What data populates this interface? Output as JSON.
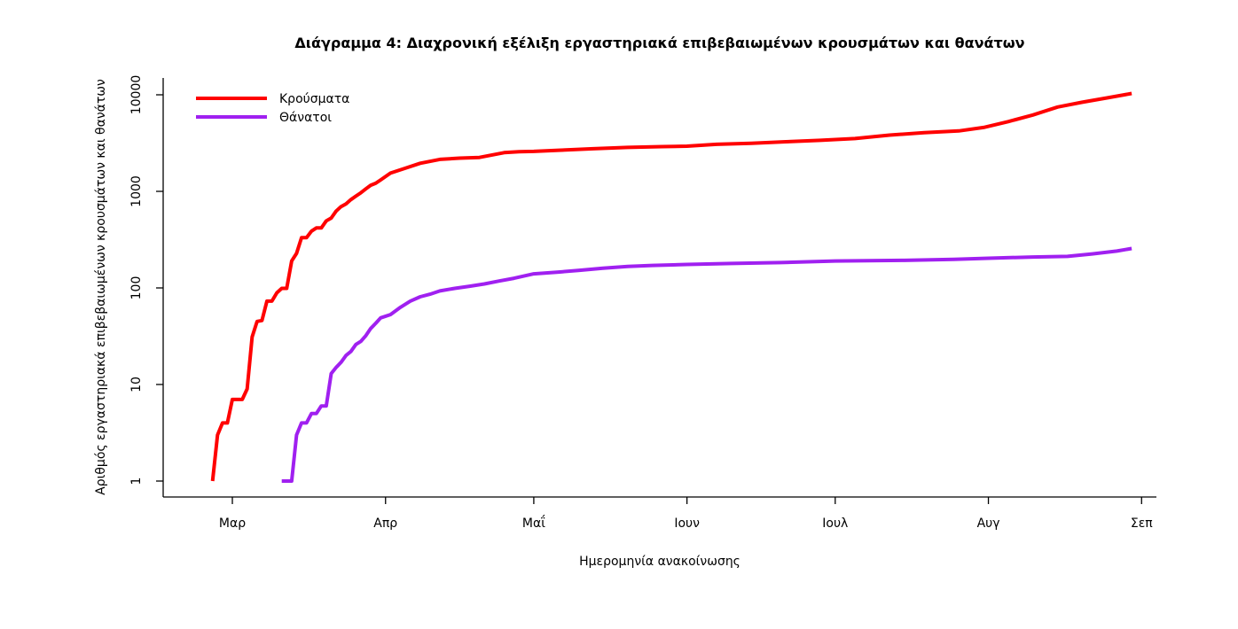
{
  "chart_data": {
    "type": "line",
    "title": "Διάγραμμα 4: Διαχρονική εξέλιξη εργαστηριακά επιβεβαιωμένων κρουσμάτων και θανάτων",
    "xlabel": "Ημερομηνία ανακοίνωσης",
    "ylabel": "Αριθμός εργαστηριακά επιβεβαιωμένων κρουσμάτων και θανάτων",
    "y_scale": "log",
    "ylim": [
      1,
      10000
    ],
    "y_ticks": [
      1,
      10,
      100,
      1000,
      10000
    ],
    "y_tick_labels": [
      "1",
      "10",
      "100",
      "1000",
      "10000"
    ],
    "x_tick_labels": [
      "Μαρ",
      "Απρ",
      "Μαΐ",
      "Ιουν",
      "Ιουλ",
      "Αυγ",
      "Σεπ"
    ],
    "x_tick_dates": [
      "2020-03-01",
      "2020-04-01",
      "2020-05-01",
      "2020-06-01",
      "2020-07-01",
      "2020-08-01",
      "2020-09-01"
    ],
    "xlim": [
      "2020-02-16",
      "2020-09-04"
    ],
    "legend_position": "top-left",
    "series": [
      {
        "name": "Κρούσματα",
        "color": "#ff0000",
        "x": [
          "2020-02-26",
          "2020-02-27",
          "2020-02-28",
          "2020-02-29",
          "2020-03-01",
          "2020-03-02",
          "2020-03-03",
          "2020-03-04",
          "2020-03-05",
          "2020-03-06",
          "2020-03-07",
          "2020-03-08",
          "2020-03-09",
          "2020-03-10",
          "2020-03-11",
          "2020-03-12",
          "2020-03-13",
          "2020-03-14",
          "2020-03-15",
          "2020-03-16",
          "2020-03-17",
          "2020-03-18",
          "2020-03-19",
          "2020-03-20",
          "2020-03-21",
          "2020-03-22",
          "2020-03-23",
          "2020-03-24",
          "2020-03-25",
          "2020-03-26",
          "2020-03-27",
          "2020-03-28",
          "2020-03-29",
          "2020-03-30",
          "2020-03-31",
          "2020-04-02",
          "2020-04-05",
          "2020-04-08",
          "2020-04-12",
          "2020-04-16",
          "2020-04-20",
          "2020-04-25",
          "2020-04-28",
          "2020-05-01",
          "2020-05-06",
          "2020-05-13",
          "2020-05-20",
          "2020-05-27",
          "2020-06-01",
          "2020-06-07",
          "2020-06-14",
          "2020-06-21",
          "2020-06-28",
          "2020-07-05",
          "2020-07-12",
          "2020-07-19",
          "2020-07-26",
          "2020-07-31",
          "2020-08-05",
          "2020-08-10",
          "2020-08-15",
          "2020-08-20",
          "2020-08-25",
          "2020-08-30"
        ],
        "values": [
          1,
          3,
          4,
          4,
          7,
          7,
          7,
          9,
          31,
          45,
          46,
          73,
          73,
          89,
          99,
          99,
          190,
          228,
          331,
          331,
          387,
          418,
          418,
          495,
          530,
          624,
          695,
          743,
          821,
          892,
          966,
          1061,
          1156,
          1212,
          1314,
          1544,
          1735,
          1955,
          2145,
          2207,
          2245,
          2517,
          2576,
          2591,
          2663,
          2760,
          2850,
          2903,
          2937,
          3068,
          3148,
          3266,
          3376,
          3519,
          3826,
          4048,
          4227,
          4587,
          5270,
          6177,
          7472,
          8381,
          9280,
          10317
        ]
      },
      {
        "name": "Θάνατοι",
        "color": "#a020f0",
        "x": [
          "2020-03-11",
          "2020-03-12",
          "2020-03-13",
          "2020-03-14",
          "2020-03-15",
          "2020-03-16",
          "2020-03-17",
          "2020-03-18",
          "2020-03-19",
          "2020-03-20",
          "2020-03-21",
          "2020-03-22",
          "2020-03-23",
          "2020-03-24",
          "2020-03-25",
          "2020-03-26",
          "2020-03-27",
          "2020-03-28",
          "2020-03-29",
          "2020-03-30",
          "2020-03-31",
          "2020-04-02",
          "2020-04-04",
          "2020-04-06",
          "2020-04-08",
          "2020-04-10",
          "2020-04-12",
          "2020-04-15",
          "2020-04-18",
          "2020-04-21",
          "2020-04-24",
          "2020-04-27",
          "2020-05-01",
          "2020-05-06",
          "2020-05-10",
          "2020-05-15",
          "2020-05-20",
          "2020-05-25",
          "2020-06-01",
          "2020-06-10",
          "2020-06-20",
          "2020-07-01",
          "2020-07-15",
          "2020-07-25",
          "2020-08-01",
          "2020-08-10",
          "2020-08-17",
          "2020-08-22",
          "2020-08-27",
          "2020-08-30"
        ],
        "values": [
          1,
          1,
          1,
          3,
          4,
          4,
          5,
          5,
          6,
          6,
          13,
          15,
          17,
          20,
          22,
          26,
          28,
          32,
          38,
          43,
          49,
          53,
          63,
          73,
          81,
          86,
          93,
          99,
          104,
          110,
          118,
          126,
          140,
          146,
          152,
          160,
          167,
          171,
          175,
          179,
          183,
          190,
          193,
          198,
          203,
          209,
          212,
          225,
          241,
          256
        ]
      }
    ]
  }
}
